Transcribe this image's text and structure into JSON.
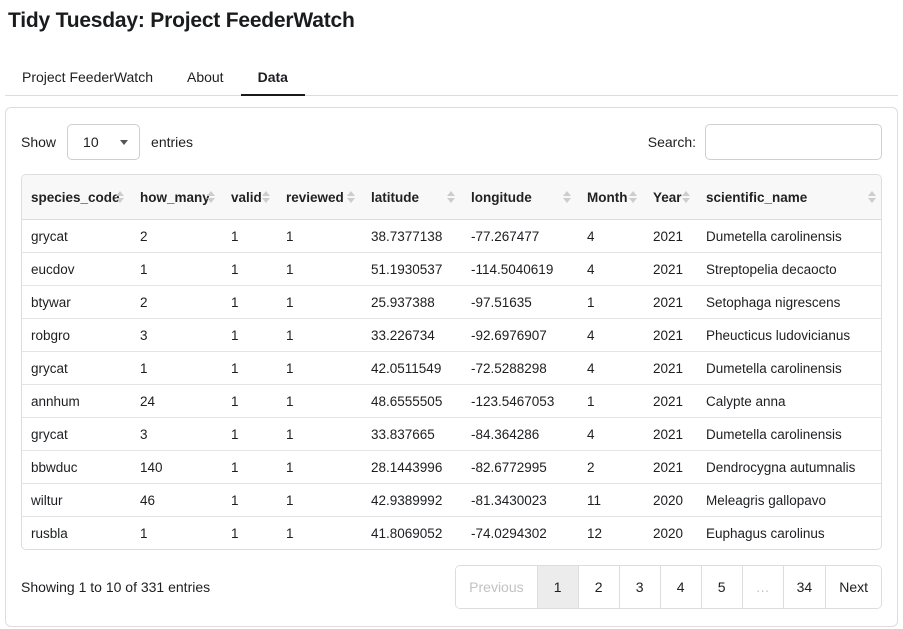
{
  "page": {
    "title": "Tidy Tuesday: Project FeederWatch"
  },
  "tabs": [
    {
      "label": "Project FeederWatch",
      "active": false
    },
    {
      "label": "About",
      "active": false
    },
    {
      "label": "Data",
      "active": true
    }
  ],
  "controls": {
    "show_label": "Show",
    "page_length": "10",
    "entries_label": "entries",
    "search_label": "Search:",
    "search_value": ""
  },
  "icons": {
    "select_caret": "caret-down ▾",
    "sort": "sort-arrows ▲▼"
  },
  "table": {
    "columns": [
      "species_code",
      "how_many",
      "valid",
      "reviewed",
      "latitude",
      "longitude",
      "Month",
      "Year",
      "scientific_name"
    ],
    "rows": [
      [
        "grycat",
        "2",
        "1",
        "1",
        "38.7377138",
        "-77.267477",
        "4",
        "2021",
        "Dumetella carolinensis"
      ],
      [
        "eucdov",
        "1",
        "1",
        "1",
        "51.1930537",
        "-114.5040619",
        "4",
        "2021",
        "Streptopelia decaocto"
      ],
      [
        "btywar",
        "2",
        "1",
        "1",
        "25.937388",
        "-97.51635",
        "1",
        "2021",
        "Setophaga nigrescens"
      ],
      [
        "robgro",
        "3",
        "1",
        "1",
        "33.226734",
        "-92.6976907",
        "4",
        "2021",
        "Pheucticus ludovicianus"
      ],
      [
        "grycat",
        "1",
        "1",
        "1",
        "42.0511549",
        "-72.5288298",
        "4",
        "2021",
        "Dumetella carolinensis"
      ],
      [
        "annhum",
        "24",
        "1",
        "1",
        "48.6555505",
        "-123.5467053",
        "1",
        "2021",
        "Calypte anna"
      ],
      [
        "grycat",
        "3",
        "1",
        "1",
        "33.837665",
        "-84.364286",
        "4",
        "2021",
        "Dumetella carolinensis"
      ],
      [
        "bbwduc",
        "140",
        "1",
        "1",
        "28.1443996",
        "-82.6772995",
        "2",
        "2021",
        "Dendrocygna autumnalis"
      ],
      [
        "wiltur",
        "46",
        "1",
        "1",
        "42.9389992",
        "-81.3430023",
        "11",
        "2020",
        "Meleagris gallopavo"
      ],
      [
        "rusbla",
        "1",
        "1",
        "1",
        "41.8069052",
        "-74.0294302",
        "12",
        "2020",
        "Euphagus carolinus"
      ]
    ]
  },
  "footer": {
    "info": "Showing 1 to 10 of 331 entries",
    "pagination": [
      {
        "label": "Previous",
        "state": "disabled"
      },
      {
        "label": "1",
        "state": "active"
      },
      {
        "label": "2",
        "state": "normal"
      },
      {
        "label": "3",
        "state": "normal"
      },
      {
        "label": "4",
        "state": "normal"
      },
      {
        "label": "5",
        "state": "normal"
      },
      {
        "label": "…",
        "state": "disabled"
      },
      {
        "label": "34",
        "state": "normal"
      },
      {
        "label": "Next",
        "state": "normal"
      }
    ]
  },
  "colors": {
    "active_tab_underline": "#1a1a1a",
    "border": "#dddddd",
    "table_header_bg": "#f8f8f8",
    "active_page_bg": "#ececec",
    "muted_text": "#c2c2c2"
  }
}
